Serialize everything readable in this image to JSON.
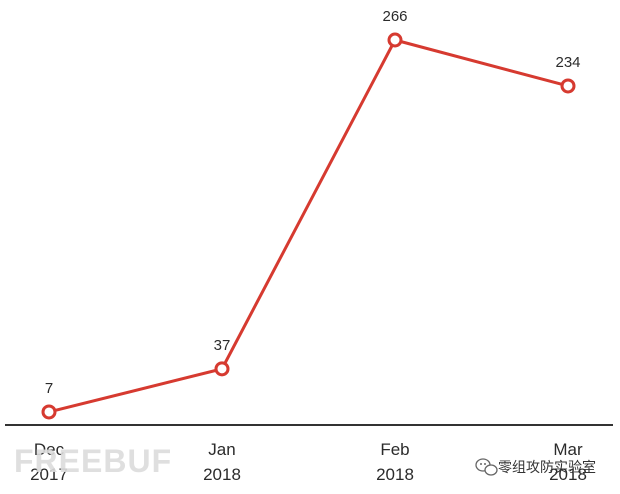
{
  "chart_data": {
    "type": "line",
    "categories": [
      "Dec 2017",
      "Jan 2018",
      "Feb 2018",
      "Mar 2018"
    ],
    "tick_lines": [
      [
        "Dec",
        "2017"
      ],
      [
        "Jan",
        "2018"
      ],
      [
        "Feb",
        "2018"
      ],
      [
        "Mar",
        "2018"
      ]
    ],
    "values": [
      7,
      37,
      266,
      234
    ],
    "data_labels": [
      "7",
      "37",
      "266",
      "234"
    ],
    "title": "",
    "xlabel": "",
    "ylabel": "",
    "ylim": [
      0,
      266
    ],
    "grid": false,
    "legend": "none",
    "line_color": "#d63a30",
    "marker_fill": "#ffffff",
    "axis_color": "#333333"
  },
  "watermark": {
    "text": "FREEBUF",
    "wechat_text": "零组攻防实验室",
    "wechat_icon": "wechat-icon"
  }
}
